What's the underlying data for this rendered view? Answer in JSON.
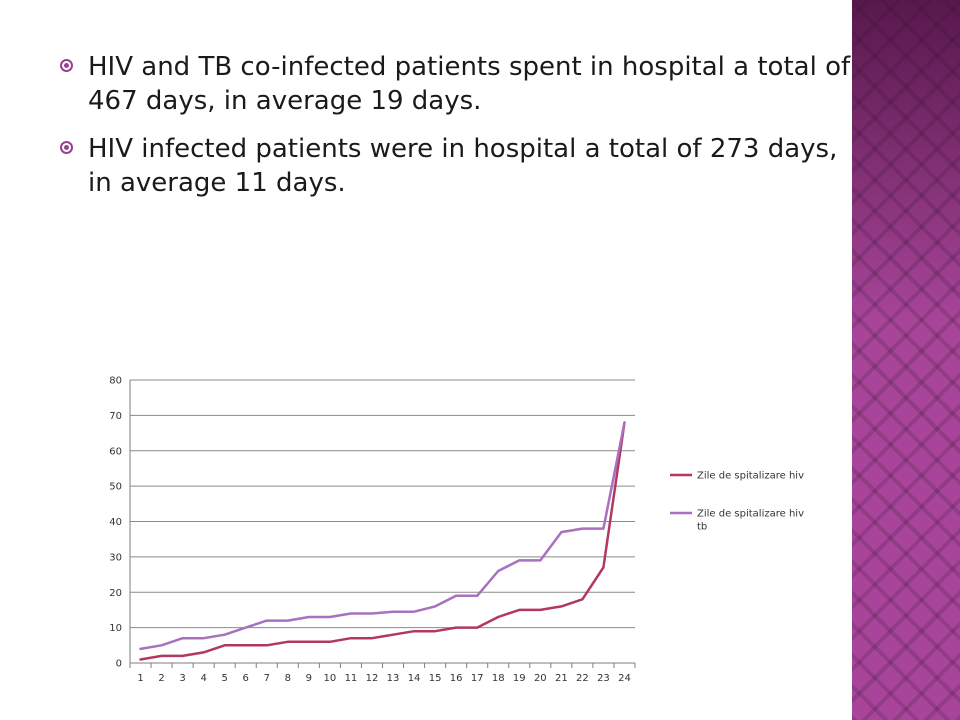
{
  "bullets": [
    {
      "text": "HIV and TB co-infected patients spent in hospital a total of 467 days, in average 19 days."
    },
    {
      "text": "HIV infected patients were in hospital a total of 273 days, in average 11 days."
    }
  ],
  "colors": {
    "accent": "#9b3f8f",
    "side_panel": "#a8459a",
    "series_hiv": "#b3385e",
    "series_hiv_tb": "#a870be"
  },
  "chart_data": {
    "type": "line",
    "title": "",
    "xlabel": "",
    "ylabel": "",
    "x": [
      1,
      2,
      3,
      4,
      5,
      6,
      7,
      8,
      9,
      10,
      11,
      12,
      13,
      14,
      15,
      16,
      17,
      18,
      19,
      20,
      21,
      22,
      23,
      24
    ],
    "ylim": [
      0,
      80
    ],
    "yticks": [
      0,
      10,
      20,
      30,
      40,
      50,
      60,
      70,
      80
    ],
    "grid": true,
    "legend": "right",
    "series": [
      {
        "name": "Zile de spitalizare hiv",
        "color": "#b3385e",
        "values": [
          1,
          2,
          2,
          3,
          5,
          5,
          5,
          6,
          6,
          6,
          7,
          7,
          8,
          9,
          9,
          10,
          10,
          13,
          15,
          15,
          16,
          18,
          27,
          68
        ]
      },
      {
        "name": "Zile de spitalizare hiv tb",
        "color": "#a870be",
        "values": [
          4,
          5,
          7,
          7,
          8,
          10,
          12,
          12,
          13,
          13,
          14,
          14,
          14.5,
          14.5,
          16,
          19,
          19,
          26,
          29,
          29,
          37,
          38,
          38,
          68
        ]
      }
    ]
  }
}
